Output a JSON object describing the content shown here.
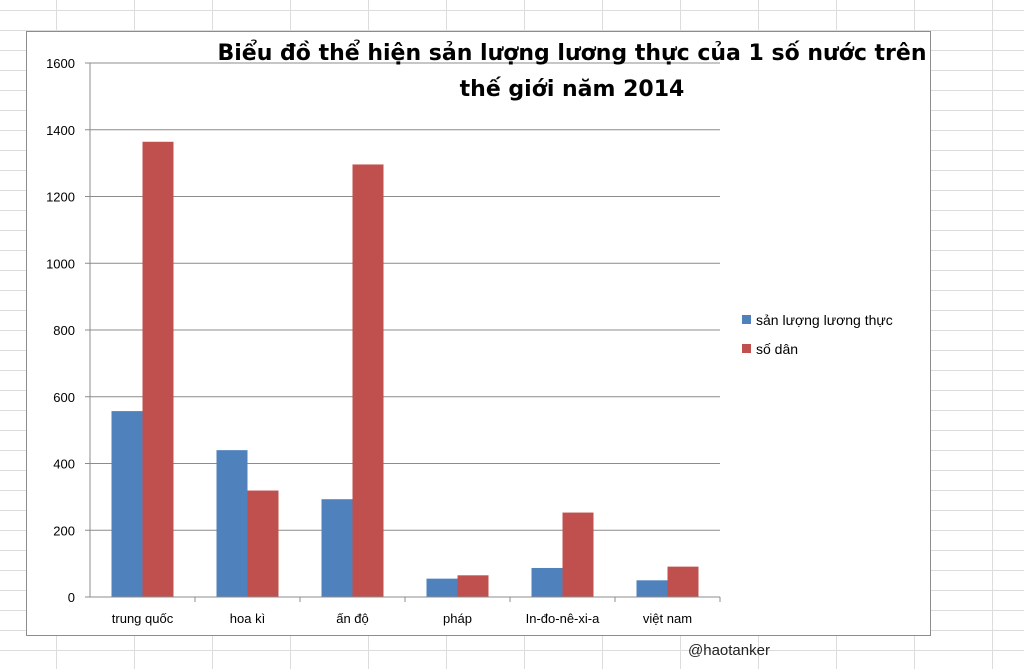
{
  "chart_data": {
    "type": "bar",
    "title_lines": [
      "Biểu đồ thể hiện sản lượng lương thực của 1 số nước trên",
      "thế giới năm 2014"
    ],
    "categories": [
      "trung quốc",
      "hoa kì",
      "ấn độ",
      "pháp",
      "In-đo-nê-xi-a",
      "việt nam"
    ],
    "series": [
      {
        "name": "sản lượng lương thực",
        "color": "#4f81bd",
        "values": [
          557,
          440,
          293,
          55,
          87,
          50
        ]
      },
      {
        "name": "số dân",
        "color": "#c0504d",
        "values": [
          1364,
          319,
          1296,
          65,
          253,
          91
        ]
      }
    ],
    "ylim": [
      0,
      1600
    ],
    "yticks": [
      0,
      200,
      400,
      600,
      800,
      1000,
      1200,
      1400,
      1600
    ],
    "grid": true,
    "legend_position": "right"
  },
  "watermark": "@haotanker"
}
